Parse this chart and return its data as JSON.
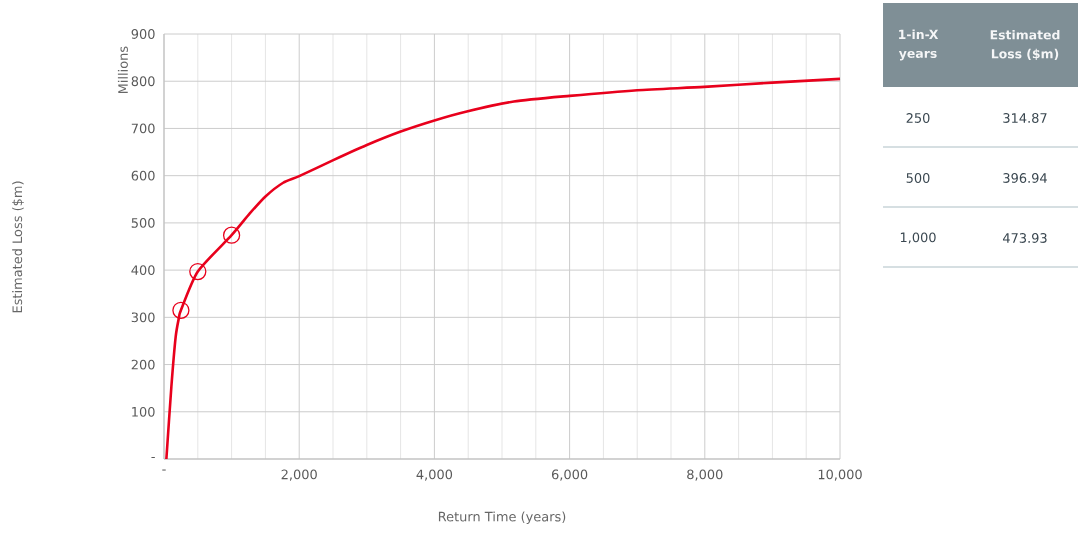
{
  "chart_data": [
    {
      "type": "line",
      "xlabel": "Return Time (years)",
      "ylabel": "Millions",
      "annotations": [
        "Estimated Loss ($m)"
      ],
      "series": [
        {
          "color": "#e8001c",
          "marker": "none",
          "line_style": "solid",
          "x": [
            35,
            109,
            173,
            222,
            250,
            500,
            1000,
            1269,
            1501,
            1763,
            2000,
            2504,
            3000,
            3491,
            4000,
            4479,
            5175,
            6000,
            7000,
            7991,
            8999,
            10000
          ],
          "values": [
            0,
            153,
            259,
            300,
            315,
            397,
            474,
            520,
            556,
            585,
            599,
            633,
            665,
            693,
            717,
            736,
            757,
            769,
            781,
            788,
            797,
            805
          ]
        },
        {
          "type": "scatter",
          "color": "#e8001c",
          "marker": "circle",
          "x": [
            250,
            500,
            1000
          ],
          "values": [
            314.87,
            396.94,
            473.93
          ]
        }
      ],
      "xlim": [
        0,
        10000
      ],
      "ylim": [
        0,
        900
      ],
      "xticks": [
        {
          "value": 0,
          "label": "-"
        },
        {
          "value": 2000,
          "label": "2,000"
        },
        {
          "value": 4000,
          "label": "4,000"
        },
        {
          "value": 6000,
          "label": "6,000"
        },
        {
          "value": 8000,
          "label": "8,000"
        },
        {
          "value": 10000,
          "label": "10,000"
        }
      ],
      "yticks": [
        {
          "value": 0,
          "label": "-"
        },
        100,
        200,
        300,
        400,
        500,
        600,
        700,
        800,
        900
      ],
      "grid": true
    },
    {
      "type": "other",
      "annotations": [
        "1-in-X years",
        "Estimated Loss ($m)"
      ],
      "categories": [
        "250",
        "500",
        "1,000"
      ],
      "values": [
        314.87,
        396.94,
        473.93
      ],
      "data_labels": true
    }
  ]
}
